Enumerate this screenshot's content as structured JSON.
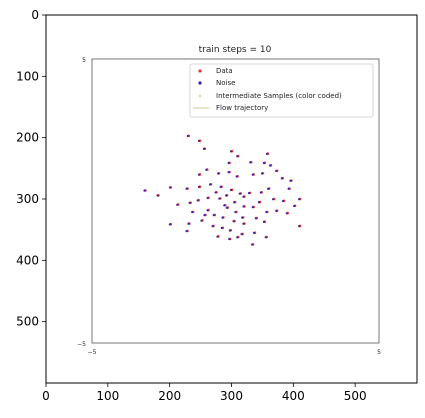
{
  "chart_data": [
    {
      "type": "image",
      "description_role": "outer matplotlib axes displaying an image",
      "xlim": [
        0,
        600
      ],
      "ylim": [
        600,
        0
      ],
      "xticks": [
        0,
        100,
        200,
        300,
        400,
        500
      ],
      "yticks": [
        0,
        100,
        200,
        300,
        400,
        500
      ],
      "xtick_labels": [
        "0",
        "100",
        "200",
        "300",
        "400",
        "500"
      ],
      "ytick_labels": [
        "0",
        "100",
        "200",
        "300",
        "400",
        "500"
      ]
    },
    {
      "type": "scatter",
      "title": "train steps = 10",
      "xlim": [
        -5,
        5
      ],
      "ylim": [
        -5,
        5
      ],
      "xtick_labels": [
        "−5",
        "5"
      ],
      "ytick_labels": [
        "5",
        "−5"
      ],
      "legend": {
        "placement": "top-right",
        "entries": [
          {
            "label": "Data",
            "color": "#e8322b",
            "marker": "dot"
          },
          {
            "label": "Noise",
            "color": "#3b1fa8",
            "marker": "dot"
          },
          {
            "label": "Intermediate Samples (color coded)",
            "color": "#d9a93a",
            "marker": "dot"
          },
          {
            "label": "Flow trajectory",
            "color": "#d8c79a",
            "marker": "line"
          }
        ]
      },
      "points": [
        [
          230,
          197
        ],
        [
          248,
          205
        ],
        [
          256,
          218
        ],
        [
          300,
          222
        ],
        [
          310,
          230
        ],
        [
          296,
          241
        ],
        [
          331,
          240
        ],
        [
          358,
          226
        ],
        [
          353,
          241
        ],
        [
          363,
          245
        ],
        [
          260,
          252
        ],
        [
          279,
          258
        ],
        [
          296,
          256
        ],
        [
          309,
          263
        ],
        [
          335,
          260
        ],
        [
          350,
          258
        ],
        [
          373,
          254
        ],
        [
          382,
          266
        ],
        [
          396,
          270
        ],
        [
          393,
          283
        ],
        [
          160,
          286
        ],
        [
          181,
          294
        ],
        [
          201,
          281
        ],
        [
          228,
          283
        ],
        [
          248,
          280
        ],
        [
          266,
          276
        ],
        [
          283,
          280
        ],
        [
          300,
          285
        ],
        [
          314,
          291
        ],
        [
          329,
          290
        ],
        [
          348,
          289
        ],
        [
          368,
          300
        ],
        [
          384,
          303
        ],
        [
          402,
          311
        ],
        [
          410,
          300
        ],
        [
          213,
          309
        ],
        [
          233,
          306
        ],
        [
          246,
          302
        ],
        [
          262,
          298
        ],
        [
          281,
          299
        ],
        [
          293,
          314
        ],
        [
          307,
          321
        ],
        [
          320,
          312
        ],
        [
          335,
          313
        ],
        [
          357,
          321
        ],
        [
          373,
          319
        ],
        [
          390,
          323
        ],
        [
          237,
          321
        ],
        [
          257,
          326
        ],
        [
          272,
          326
        ],
        [
          286,
          330
        ],
        [
          304,
          336
        ],
        [
          320,
          340
        ],
        [
          340,
          331
        ],
        [
          353,
          337
        ],
        [
          201,
          341
        ],
        [
          231,
          340
        ],
        [
          252,
          335
        ],
        [
          270,
          344
        ],
        [
          285,
          347
        ],
        [
          298,
          351
        ],
        [
          317,
          357
        ],
        [
          337,
          355
        ],
        [
          356,
          362
        ],
        [
          410,
          344
        ],
        [
          278,
          361
        ],
        [
          297,
          365
        ],
        [
          310,
          362
        ],
        [
          334,
          374
        ],
        [
          248,
          260
        ],
        [
          275,
          289
        ],
        [
          292,
          294
        ],
        [
          320,
          296
        ],
        [
          305,
          305
        ],
        [
          318,
          330
        ],
        [
          262,
          318
        ],
        [
          228,
          352
        ],
        [
          345,
          305
        ],
        [
          360,
          283
        ],
        [
          289,
          310
        ]
      ]
    }
  ]
}
